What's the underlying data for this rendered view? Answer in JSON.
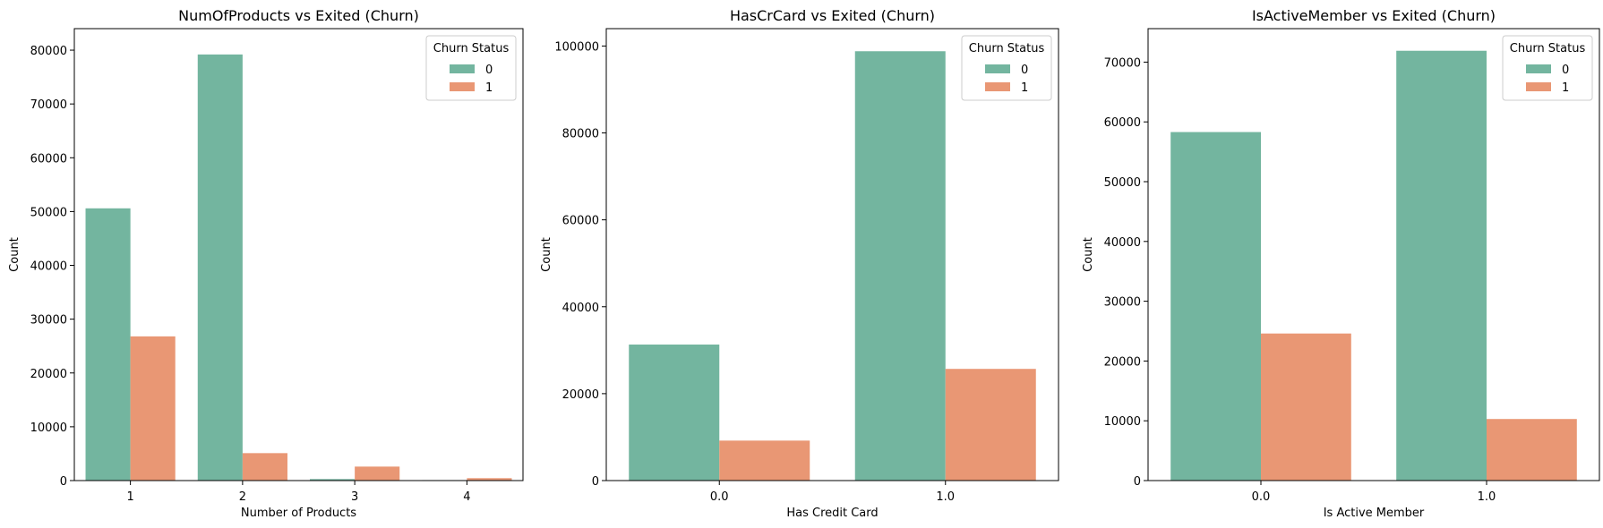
{
  "colors": {
    "exited_0": "#73b59f",
    "exited_1": "#e99774"
  },
  "chart_data": [
    {
      "type": "bar",
      "title": "NumOfProducts vs Exited (Churn)",
      "xlabel": "Number of Products",
      "ylabel": "Count",
      "categories": [
        "1",
        "2",
        "3",
        "4"
      ],
      "series": [
        {
          "name": "0",
          "values": [
            50600,
            79200,
            280,
            90
          ]
        },
        {
          "name": "1",
          "values": [
            26800,
            5100,
            2600,
            450
          ]
        }
      ],
      "ylim": [
        0,
        84000
      ],
      "yticks": [
        0,
        10000,
        20000,
        30000,
        40000,
        50000,
        60000,
        70000,
        80000
      ],
      "legend": {
        "title": "Churn Status",
        "placement": "top-right"
      }
    },
    {
      "type": "bar",
      "title": "HasCrCard vs Exited (Churn)",
      "xlabel": "Has Credit Card",
      "ylabel": "Count",
      "categories": [
        "0.0",
        "1.0"
      ],
      "series": [
        {
          "name": "0",
          "values": [
            31300,
            98800
          ]
        },
        {
          "name": "1",
          "values": [
            9200,
            25700
          ]
        }
      ],
      "ylim": [
        0,
        104000
      ],
      "yticks": [
        0,
        20000,
        40000,
        60000,
        80000,
        100000
      ],
      "legend": {
        "title": "Churn Status",
        "placement": "top-right"
      }
    },
    {
      "type": "bar",
      "title": "IsActiveMember vs Exited (Churn)",
      "xlabel": "Is Active Member",
      "ylabel": "Count",
      "categories": [
        "0.0",
        "1.0"
      ],
      "series": [
        {
          "name": "0",
          "values": [
            58300,
            71900
          ]
        },
        {
          "name": "1",
          "values": [
            24600,
            10300
          ]
        }
      ],
      "ylim": [
        0,
        75600
      ],
      "yticks": [
        0,
        10000,
        20000,
        30000,
        40000,
        50000,
        60000,
        70000
      ],
      "legend": {
        "title": "Churn Status",
        "placement": "top-right"
      }
    }
  ]
}
